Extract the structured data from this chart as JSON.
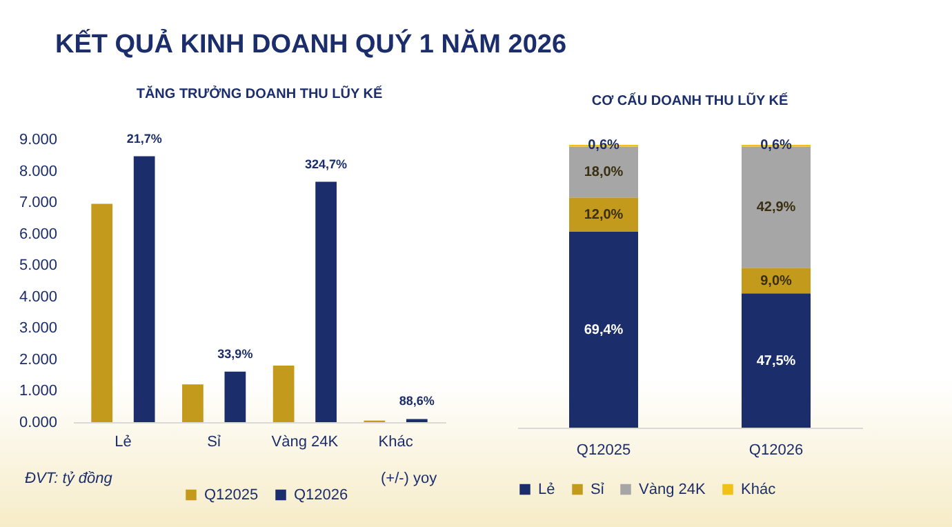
{
  "chart_data": [
    {
      "type": "bar",
      "title": "KẾT QUẢ KINH DOANH QUÝ 1 NĂM 2026",
      "subtitle": "TĂNG TRƯỞNG DOANH THU LŨY KẾ",
      "categories": [
        "Lẻ",
        "Sỉ",
        "Vàng 24K",
        "Khác"
      ],
      "series": [
        {
          "name": "Q12025",
          "color": "#c49a1c",
          "values": [
            6950,
            1200,
            1800,
            50
          ]
        },
        {
          "name": "Q12026",
          "color": "#1b2d6b",
          "values": [
            8460,
            1610,
            7650,
            100
          ]
        }
      ],
      "ylim": [
        0,
        9000
      ],
      "yticks": [
        {
          "value": 0,
          "label": "0.000"
        },
        {
          "value": 1000,
          "label": "1.000"
        },
        {
          "value": 2000,
          "label": "2.000"
        },
        {
          "value": 3000,
          "label": "3.000"
        },
        {
          "value": 4000,
          "label": "4.000"
        },
        {
          "value": 5000,
          "label": "5.000"
        },
        {
          "value": 6000,
          "label": "6.000"
        },
        {
          "value": 7000,
          "label": "7.000"
        },
        {
          "value": 8000,
          "label": "8.000"
        },
        {
          "value": 9000,
          "label": "9.000"
        }
      ],
      "legend": "bottom",
      "annotations": [
        "ĐVT: tỷ đồng",
        "(+/-) yoy",
        "21,7%",
        "33,9%",
        "324,7%",
        "88,6%"
      ]
    },
    {
      "type": "bar",
      "stacked": true,
      "title": "CƠ CẤU DOANH THU LŨY KẾ",
      "categories": [
        "Q12025",
        "Q12026"
      ],
      "series": [
        {
          "name": "Lẻ",
          "color": "#1b2d6b",
          "values": [
            69.4,
            47.5
          ],
          "value_labels": [
            "69,4%",
            "47,5%"
          ]
        },
        {
          "name": "Sỉ",
          "color": "#c49a1c",
          "values": [
            12.0,
            9.0
          ],
          "value_labels": [
            "12,0%",
            "9,0%"
          ]
        },
        {
          "name": "Vàng 24K",
          "color": "#a6a6a6",
          "values": [
            18.0,
            42.9
          ],
          "value_labels": [
            "18,0%",
            "42,9%"
          ]
        },
        {
          "name": "Khác",
          "color": "#f2c118",
          "values": [
            0.6,
            0.6
          ],
          "value_labels": [
            "0,6%",
            "0,6%"
          ]
        }
      ],
      "legend": "bottom",
      "tick_labels": "x"
    }
  ]
}
